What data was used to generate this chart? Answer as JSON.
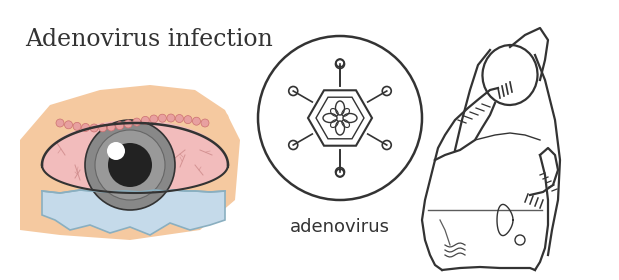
{
  "title": "Adenovirus infection",
  "virus_label": "adenovirus",
  "background_color": "#ffffff",
  "outline_color": "#333333",
  "skin_color": "#f5c9a0",
  "eyelid_pink_color": "#f0b090",
  "sclera_pink_color": "#f2bcbc",
  "iris_color": "#888888",
  "pupil_color": "#222222",
  "blood_vessel_color": "#cc8888",
  "tear_color": "#c5daea",
  "tear_outline_color": "#8aafc0",
  "figsize": [
    6.19,
    2.8
  ],
  "dpi": 100
}
